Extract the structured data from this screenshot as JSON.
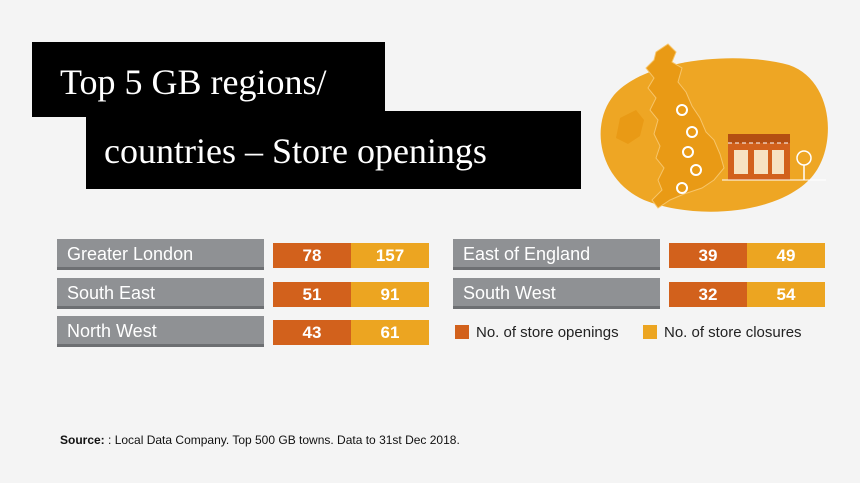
{
  "title": {
    "line1": "Top 5 GB regions/",
    "line2": "countries – Store openings"
  },
  "colors": {
    "openings": "#d2611c",
    "closures": "#eca521",
    "label_bg": "#8f9194"
  },
  "chart_data": {
    "type": "table",
    "columns": [
      "No. of store openings",
      "No. of store closures"
    ],
    "rows": [
      {
        "region": "Greater London",
        "openings": "78",
        "closures": "157"
      },
      {
        "region": "South East",
        "openings": "51",
        "closures": "91"
      },
      {
        "region": "North West",
        "openings": "43",
        "closures": "61"
      },
      {
        "region": "East of England",
        "openings": "39",
        "closures": "49"
      },
      {
        "region": "South West",
        "openings": "32",
        "closures": "54"
      }
    ]
  },
  "legend": {
    "openings": "No. of store openings",
    "closures": "No. of store closures"
  },
  "source": {
    "label": "Source:",
    "text": ": Local Data Company.  Top 500 GB towns. Data to 31st Dec 2018."
  },
  "illustration": {
    "icon": "uk-map-and-storefront-icon"
  }
}
